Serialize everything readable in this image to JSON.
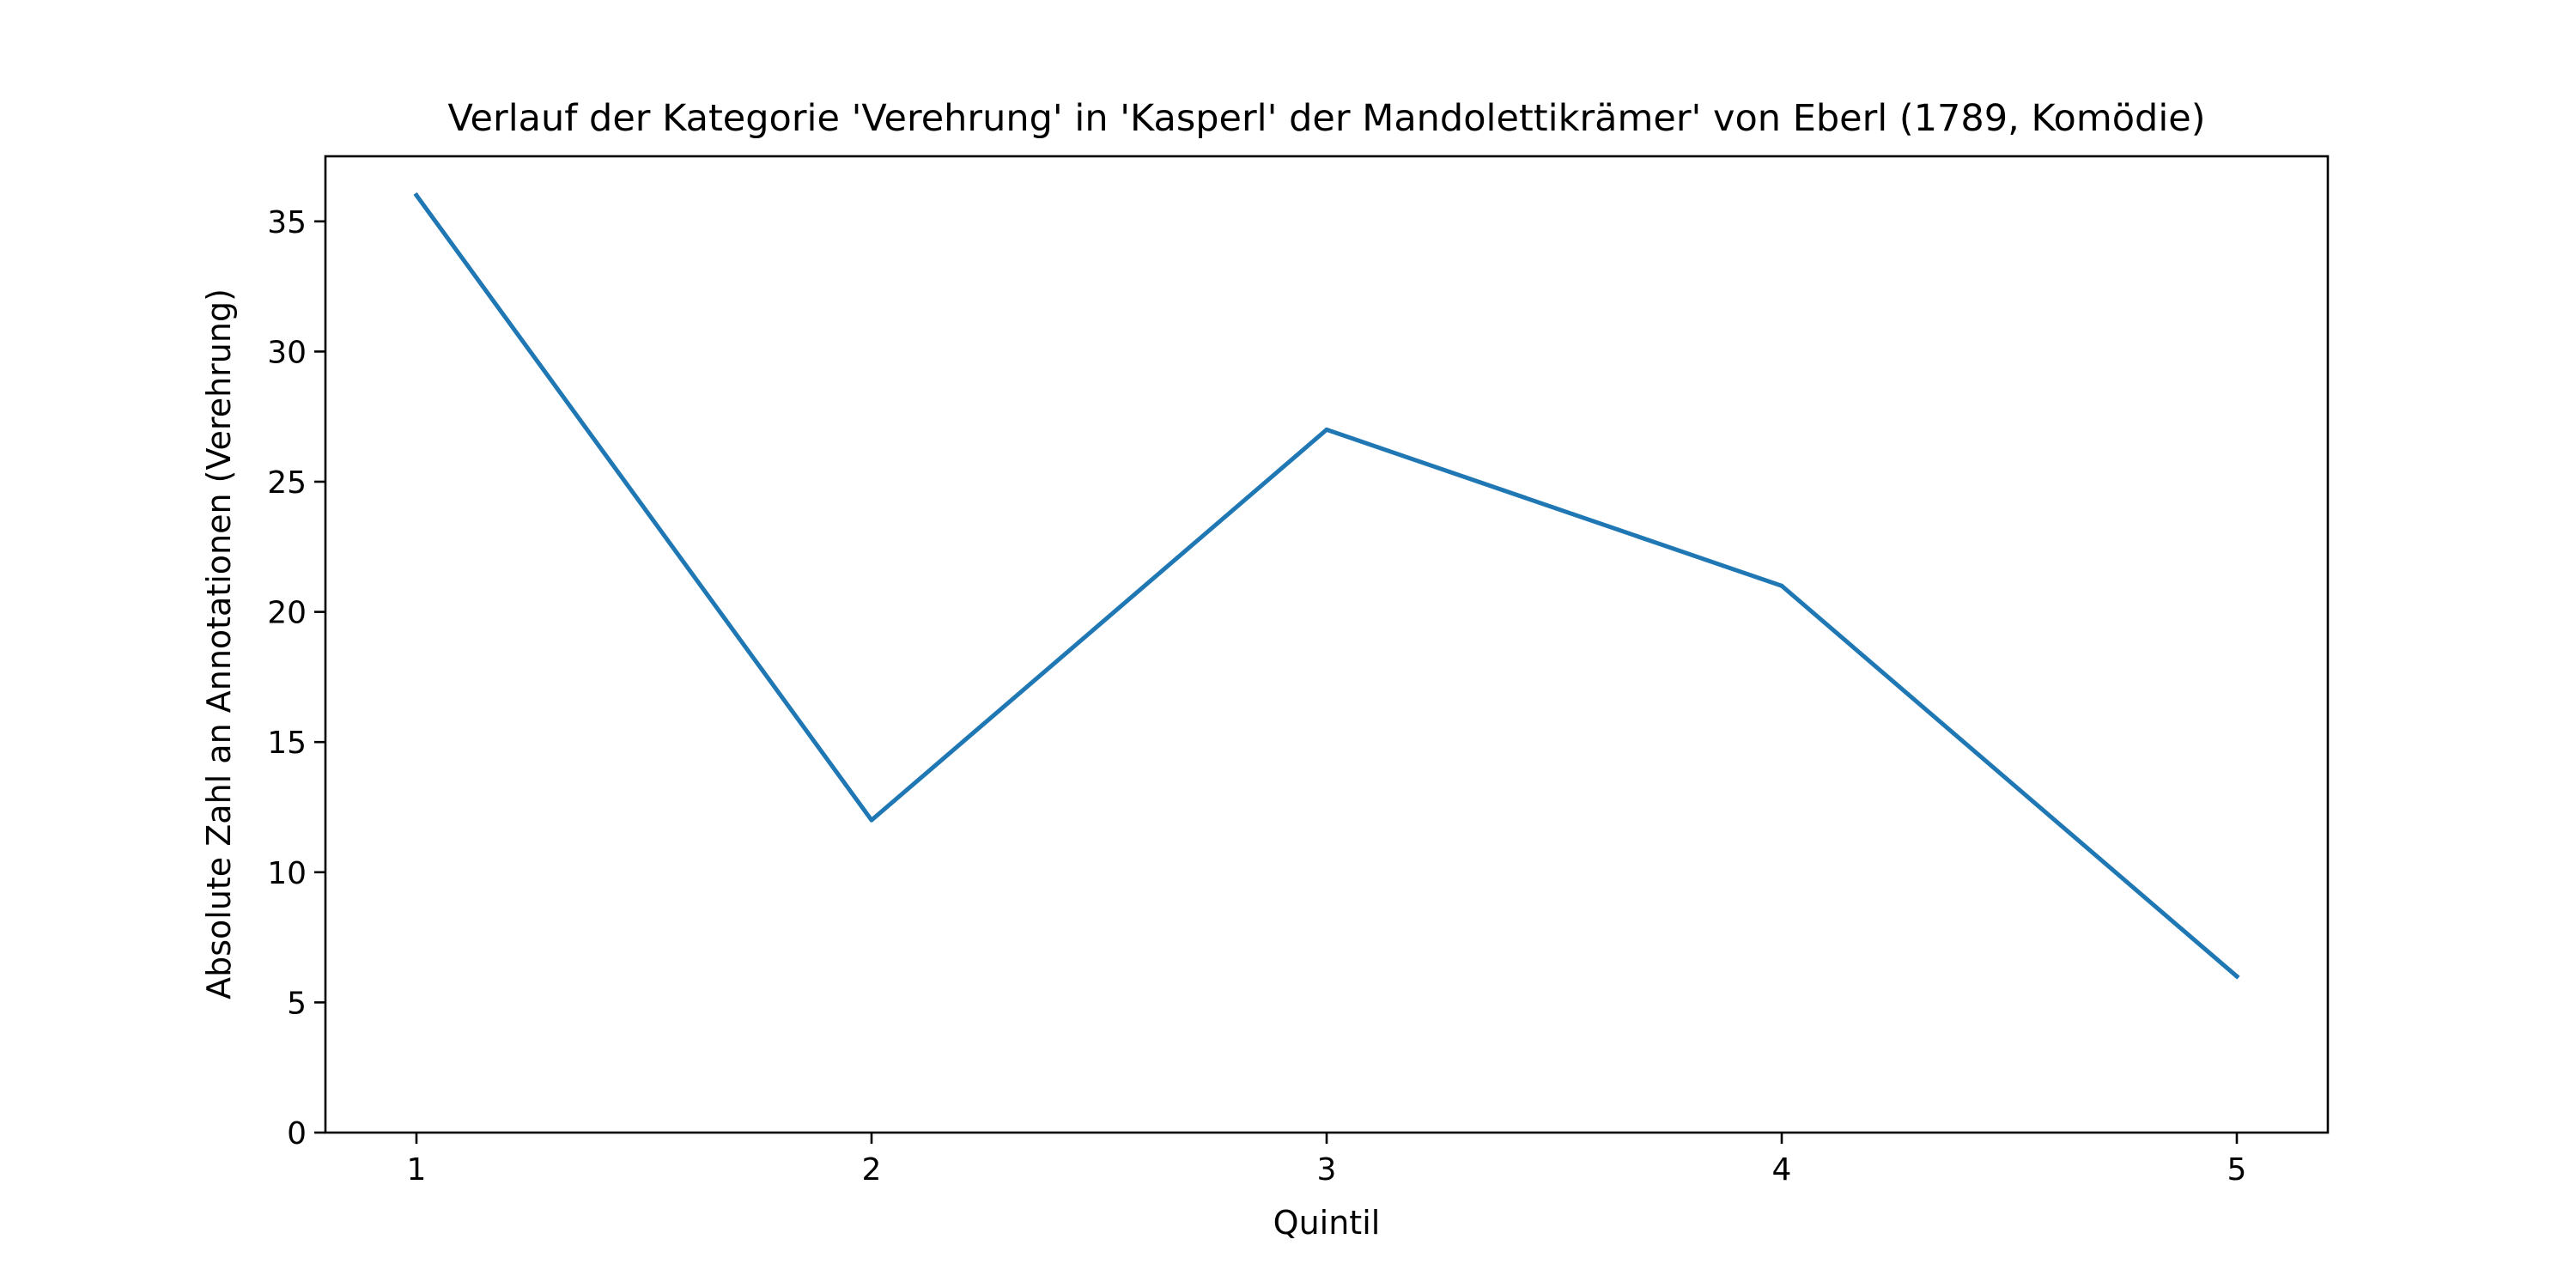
{
  "chart_data": {
    "type": "line",
    "title": "Verlauf der Kategorie 'Verehrung' in 'Kasperl' der Mandolettikrämer' von Eberl (1789, Komödie)",
    "xlabel": "Quintil",
    "ylabel": "Absolute Zahl an Annotationen (Verehrung)",
    "x": [
      1,
      2,
      3,
      4,
      5
    ],
    "series": [
      {
        "values": [
          36,
          12,
          27,
          21,
          6
        ],
        "color": "#1f77b4"
      }
    ],
    "xlim": [
      0.8,
      5.2
    ],
    "ylim": [
      0,
      37.5
    ],
    "xticks": [
      1,
      2,
      3,
      4,
      5
    ],
    "yticks": [
      0,
      5,
      10,
      15,
      20,
      25,
      30,
      35
    ],
    "grid": false,
    "legend": "none"
  }
}
